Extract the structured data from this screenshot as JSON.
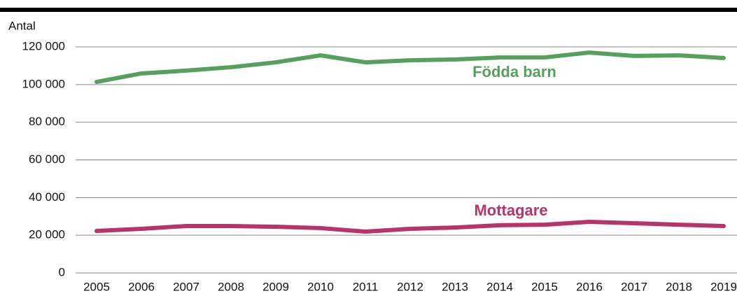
{
  "chart_data": {
    "type": "line",
    "y_axis_label": "Antal",
    "categories": [
      "2005",
      "2006",
      "2007",
      "2008",
      "2009",
      "2010",
      "2011",
      "2012",
      "2013",
      "2014",
      "2015",
      "2016",
      "2017",
      "2018",
      "2019"
    ],
    "series": [
      {
        "name": "Födda barn",
        "color": "#55a05a",
        "values": [
          101400,
          105900,
          107400,
          109200,
          111800,
          115500,
          111800,
          112900,
          113300,
          114400,
          114400,
          117000,
          115200,
          115500,
          114100
        ]
      },
      {
        "name": "Mottagare",
        "color": "#b8336a",
        "values": [
          22300,
          23400,
          24900,
          24900,
          24500,
          23800,
          21900,
          23400,
          24100,
          25300,
          25600,
          27100,
          26400,
          25600,
          24900
        ]
      }
    ],
    "ylim": [
      0,
      120000
    ],
    "yticks": [
      0,
      {
        "value": 20000,
        "label": "20 000"
      },
      {
        "value": 40000,
        "label": "40 000"
      },
      {
        "value": 60000,
        "label": "60 000"
      },
      {
        "value": 80000,
        "label": "80 000"
      },
      {
        "value": 100000,
        "label": "100 000"
      },
      {
        "value": 120000,
        "label": "120 000"
      }
    ],
    "grid": true
  }
}
